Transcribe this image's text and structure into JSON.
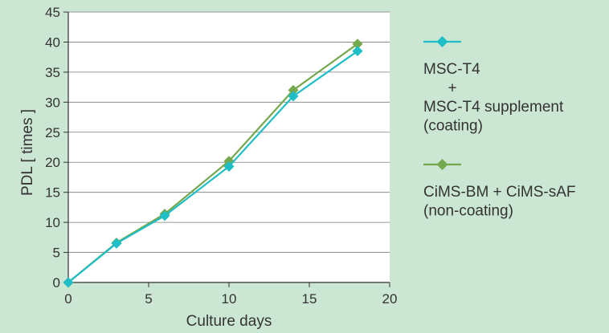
{
  "chart_data": {
    "type": "line",
    "xlabel": "Culture days",
    "ylabel": "PDL [ times ]",
    "xlim": [
      0,
      20
    ],
    "ylim": [
      0,
      45
    ],
    "xticks": [
      "0",
      "5",
      "10",
      "15",
      "20"
    ],
    "yticks": [
      "0",
      "5",
      "10",
      "15",
      "20",
      "25",
      "30",
      "35",
      "40",
      "45"
    ],
    "grid": "horizontal",
    "legend_position": "right",
    "series": [
      {
        "name_lines": [
          "MSC-T4",
          "+",
          "MSC-T4 supplement",
          "(coating)"
        ],
        "color": "#1fbdc6",
        "marker": "diamond",
        "x": [
          0,
          3,
          6,
          10,
          14,
          18
        ],
        "y": [
          0,
          6.5,
          11.1,
          19.3,
          31,
          38.5
        ]
      },
      {
        "name_lines": [
          "CiMS-BM + CiMS-sAF",
          "(non-coating)"
        ],
        "color": "#74a84d",
        "marker": "diamond",
        "x": [
          0,
          3,
          6,
          10,
          14,
          18
        ],
        "y": [
          0,
          6.6,
          11.4,
          20.2,
          32,
          39.7
        ]
      }
    ]
  }
}
